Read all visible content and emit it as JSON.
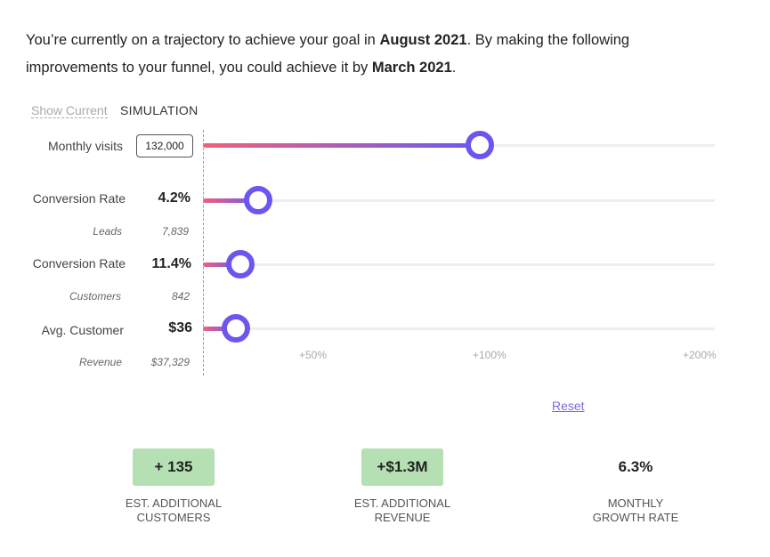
{
  "intro": {
    "before": "You’re currently on a trajectory to achieve your goal in ",
    "goal_date": "August 2021",
    "middle": ". By making the following improvements to your funnel, you could achieve it by ",
    "new_date": "March 2021",
    "end": "."
  },
  "tabs": {
    "show_current": "Show Current",
    "simulation": "SIMULATION"
  },
  "rows": [
    {
      "label": "Monthly visits",
      "value": "132,000",
      "improvement_percent": 97
    },
    {
      "label": "Conversion Rate",
      "value": "4.2%",
      "sub_label": "Leads",
      "sub_value": "7,839",
      "improvement_percent": 25
    },
    {
      "label": "Conversion Rate",
      "value": "11.4%",
      "sub_label": "Customers",
      "sub_value": "842",
      "improvement_percent": 17
    },
    {
      "label": "Avg. Customer",
      "value": "$36",
      "sub_label": "Revenue",
      "sub_value": "$37,329",
      "improvement_percent": 15
    }
  ],
  "ticks": [
    "+50%",
    "+100%",
    "+200%"
  ],
  "reset": "Reset",
  "stats": [
    {
      "value": "+ 135",
      "caption1": "EST. ADDITIONAL",
      "caption2": "CUSTOMERS"
    },
    {
      "value": "+$1.3M",
      "caption1": "EST. ADDITIONAL",
      "caption2": "REVENUE"
    },
    {
      "value": "6.3%",
      "caption1": "MONTHLY",
      "caption2": "GROWTH RATE"
    }
  ],
  "colors": {
    "accent": "#6b57ee",
    "gradient_start": "#f0607a",
    "stat_bg": "#b5e0b3",
    "link": "#7a6be0"
  }
}
